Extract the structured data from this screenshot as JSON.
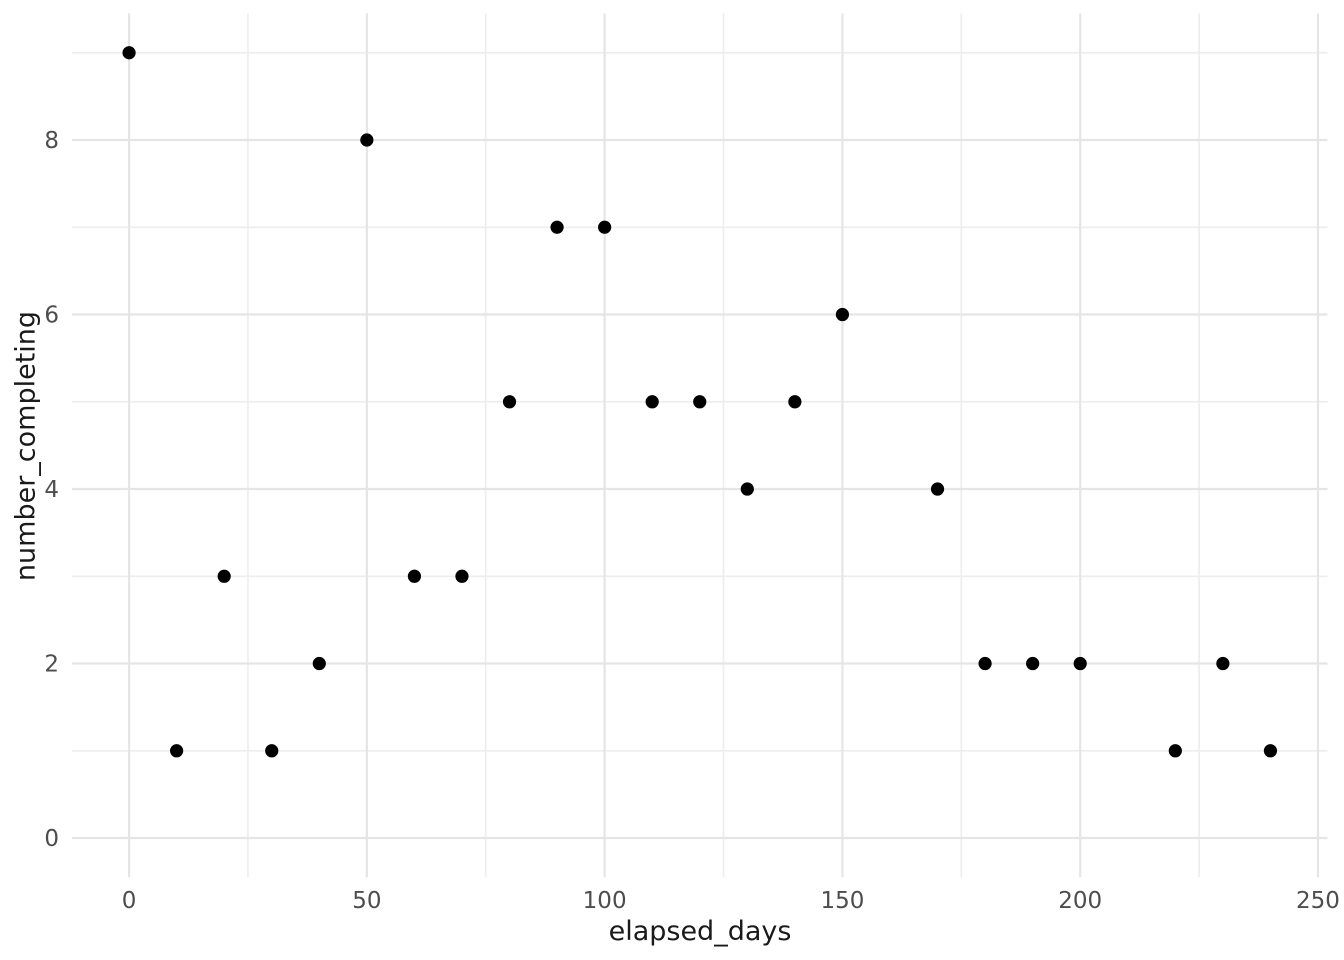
{
  "chart_data": {
    "type": "scatter",
    "title": "",
    "xlabel": "elapsed_days",
    "ylabel": "number_completing",
    "x": [
      0,
      10,
      20,
      30,
      40,
      50,
      60,
      70,
      80,
      90,
      100,
      110,
      120,
      130,
      140,
      150,
      170,
      180,
      190,
      200,
      220,
      230,
      240
    ],
    "y": [
      9,
      1,
      3,
      1,
      2,
      8,
      3,
      3,
      5,
      7,
      7,
      5,
      5,
      4,
      5,
      6,
      4,
      2,
      2,
      2,
      1,
      2,
      1
    ],
    "xlim": [
      -12,
      252
    ],
    "ylim": [
      -0.45,
      9.45
    ],
    "x_major_ticks": [
      0,
      50,
      100,
      150,
      200,
      250
    ],
    "x_tick_labels": [
      "0",
      "50",
      "100",
      "150",
      "200",
      "250"
    ],
    "x_minor_ticks": [
      25,
      75,
      125,
      175,
      225
    ],
    "y_major_ticks": [
      0,
      2,
      4,
      6,
      8
    ],
    "y_tick_labels": [
      "0",
      "2",
      "4",
      "6",
      "8"
    ],
    "y_minor_ticks": [
      1,
      3,
      5,
      7,
      9
    ],
    "grid": "major+minor",
    "legend_position": "none",
    "point_color": "#000000",
    "point_radius_px": 6.6,
    "background_color": "#ffffff",
    "grid_major_color": "#e5e5e5",
    "grid_minor_color": "#ededed",
    "tick_label_color": "#4d4d4d",
    "axis_title_color": "#1a1a1a"
  }
}
